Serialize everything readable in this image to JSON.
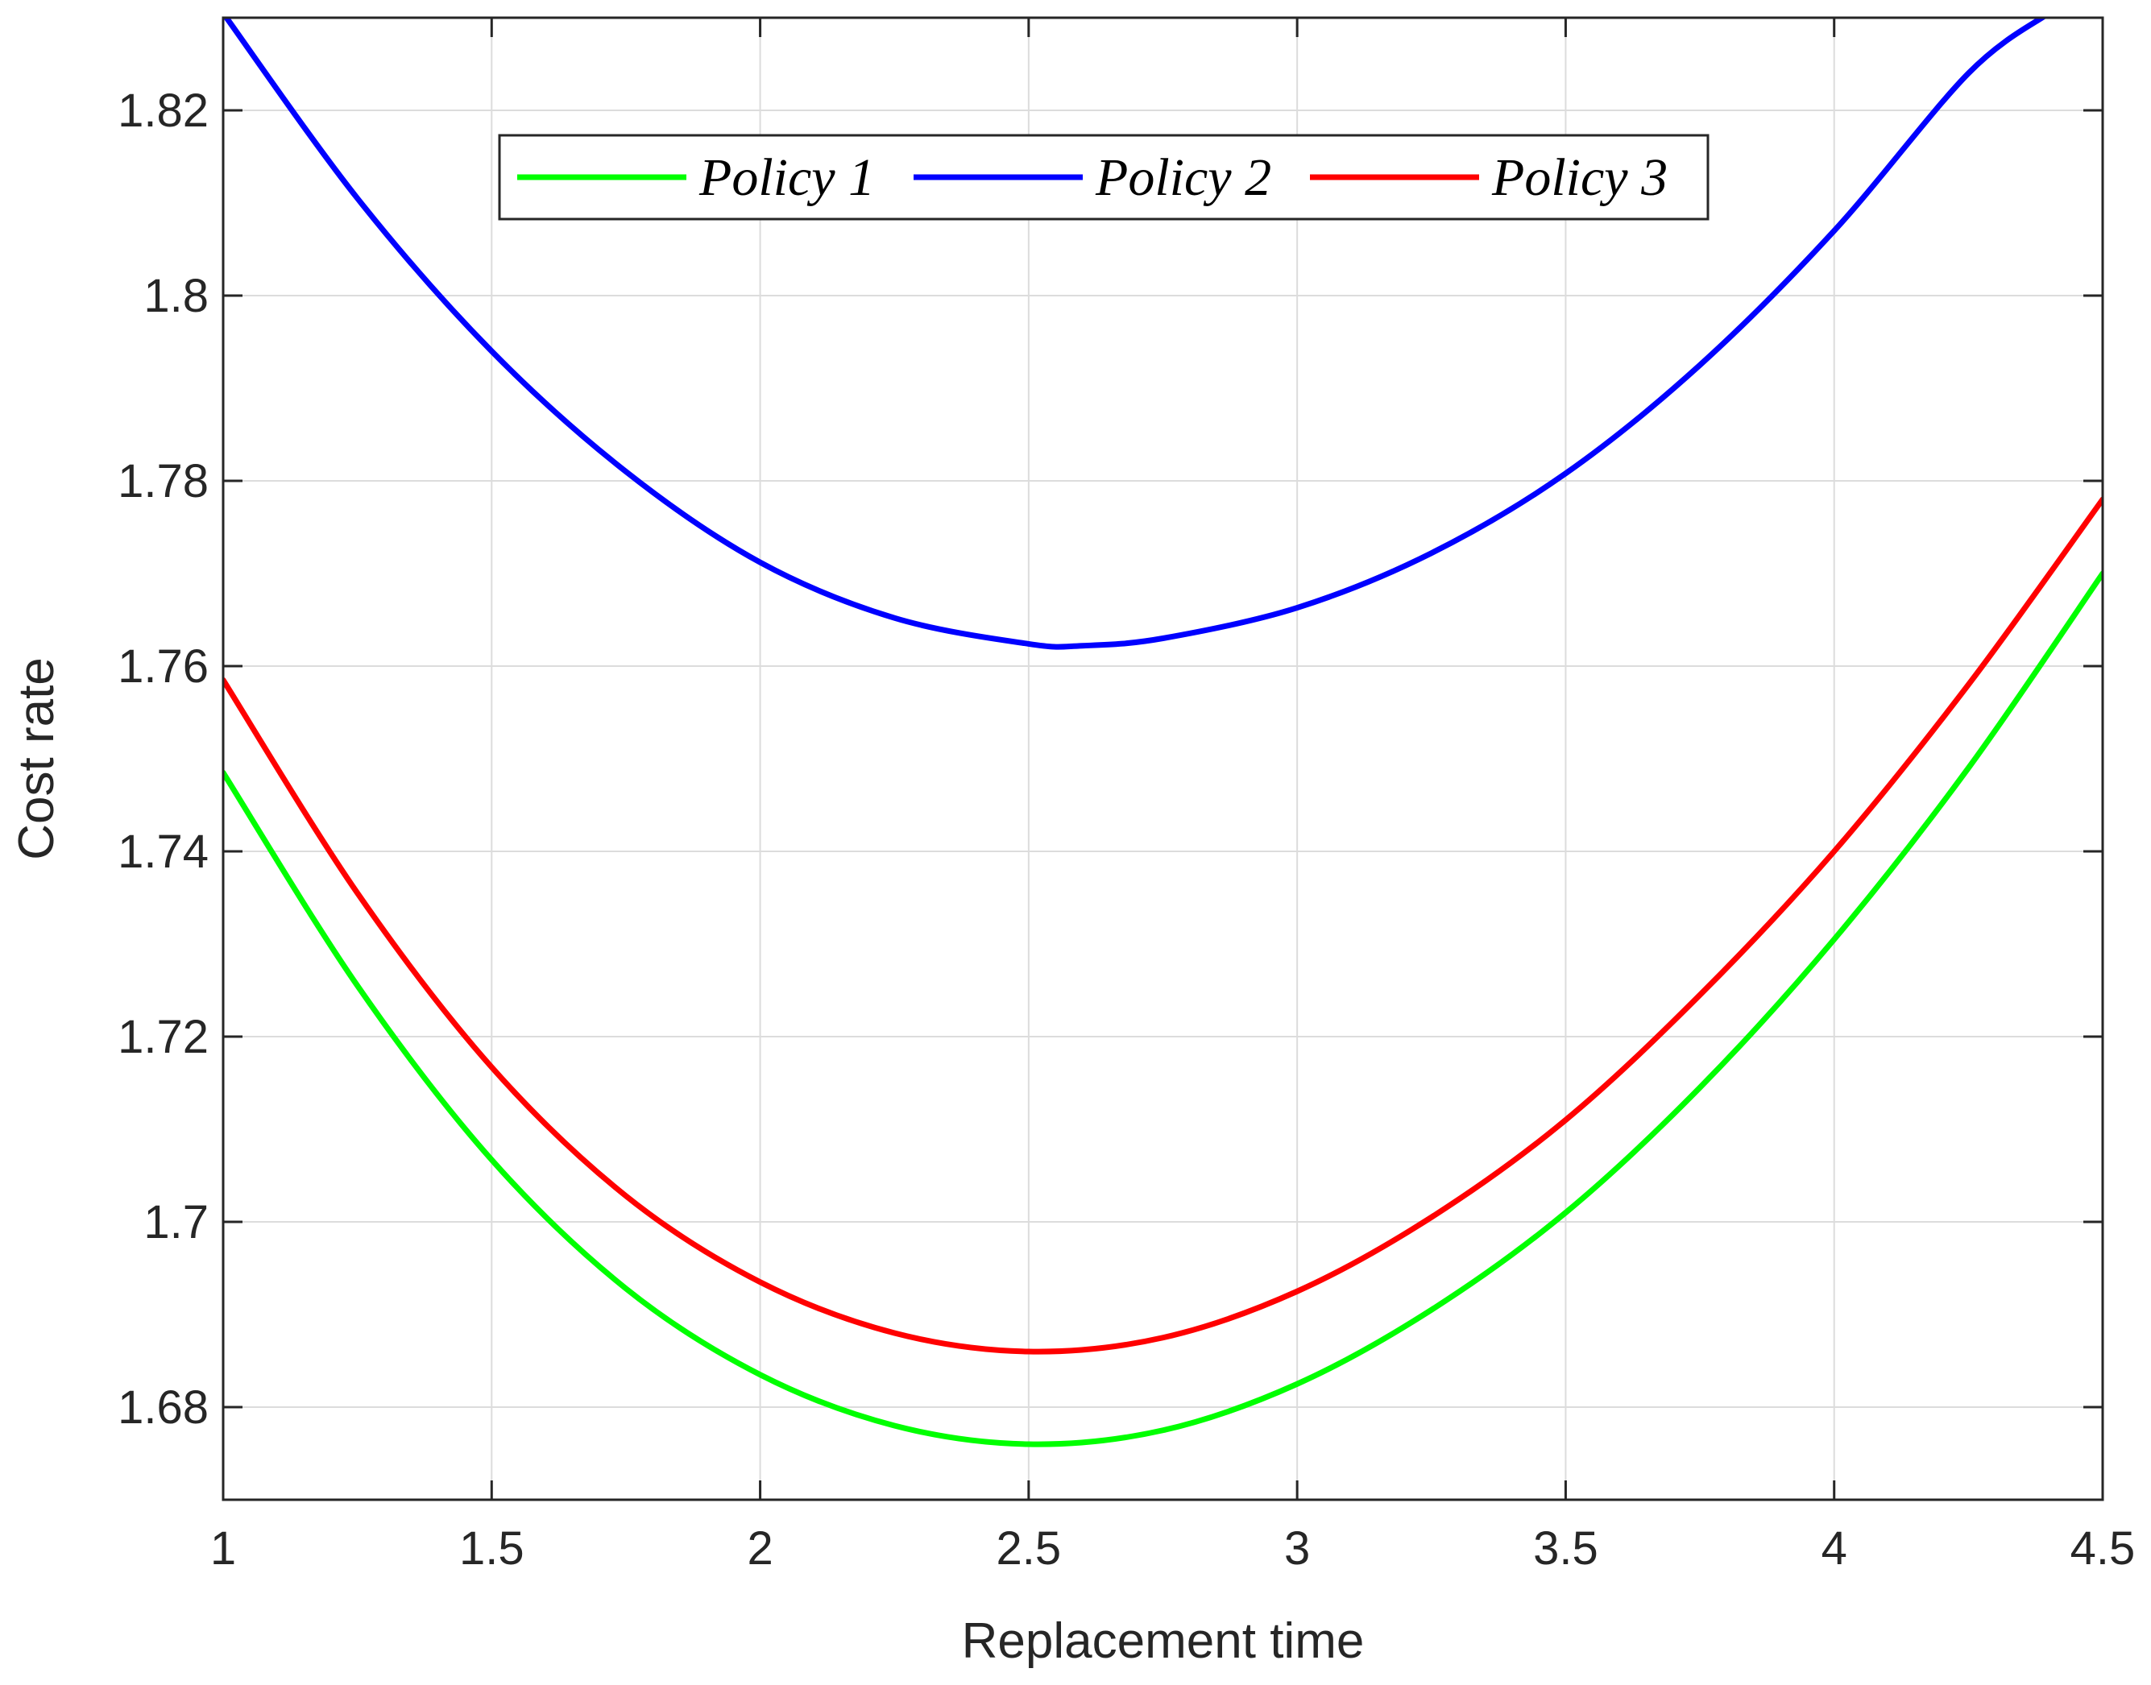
{
  "chart_data": {
    "type": "line",
    "title": "",
    "xlabel": "Replacement time",
    "ylabel": "Cost rate",
    "xlim": [
      1,
      4.5
    ],
    "ylim": [
      1.67,
      1.83
    ],
    "x_ticks": [
      1,
      1.5,
      2,
      2.5,
      3,
      3.5,
      4,
      4.5
    ],
    "x_tick_labels": [
      "1",
      "1.5",
      "2",
      "2.5",
      "3",
      "3.5",
      "4",
      "4.5"
    ],
    "y_ticks": [
      1.68,
      1.7,
      1.72,
      1.74,
      1.76,
      1.78,
      1.8,
      1.82
    ],
    "y_tick_labels": [
      "1.68",
      "1.7",
      "1.72",
      "1.74",
      "1.76",
      "1.78",
      "1.8",
      "1.82"
    ],
    "grid": true,
    "legend_position": "top",
    "legend_orientation": "horizontal",
    "series": [
      {
        "name": "Policy 1",
        "color": "#00ff00",
        "x": [
          1,
          1.25,
          1.5,
          1.75,
          2,
          2.25,
          2.5,
          2.75,
          3,
          3.25,
          3.5,
          3.75,
          4,
          4.25,
          4.5
        ],
        "y": [
          1.7485,
          1.7255,
          1.7067,
          1.6928,
          1.6835,
          1.678,
          1.676,
          1.6775,
          1.6825,
          1.6905,
          1.701,
          1.7145,
          1.7305,
          1.749,
          1.77
        ]
      },
      {
        "name": "Policy 2",
        "color": "#0000ff",
        "x": [
          1,
          1.25,
          1.5,
          1.75,
          2,
          2.25,
          2.5,
          2.6,
          2.75,
          3,
          3.25,
          3.5,
          3.75,
          4,
          4.25,
          4.4
        ],
        "y": [
          1.8305,
          1.8105,
          1.794,
          1.781,
          1.7712,
          1.7652,
          1.7624,
          1.7622,
          1.763,
          1.7663,
          1.7722,
          1.7808,
          1.7925,
          1.807,
          1.824,
          1.8305
        ]
      },
      {
        "name": "Policy 3",
        "color": "#ff0000",
        "x": [
          1,
          1.25,
          1.5,
          1.75,
          2,
          2.25,
          2.5,
          2.75,
          3,
          3.25,
          3.5,
          3.75,
          4,
          4.25,
          4.5
        ],
        "y": [
          1.7585,
          1.7355,
          1.7167,
          1.7028,
          1.6935,
          1.688,
          1.686,
          1.6875,
          1.6925,
          1.7005,
          1.711,
          1.7245,
          1.74,
          1.758,
          1.778
        ]
      }
    ]
  }
}
